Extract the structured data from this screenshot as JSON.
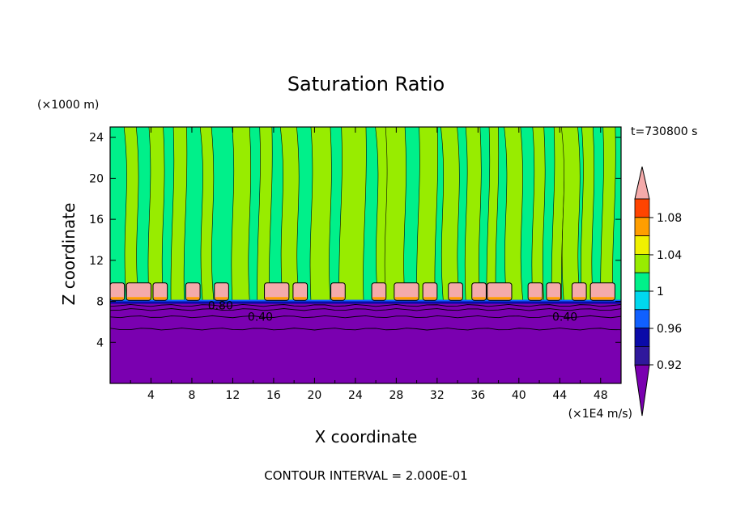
{
  "chart_data": {
    "type": "heatmap",
    "title": "Saturation Ratio",
    "xlabel": "X coordinate",
    "ylabel": "Z coordinate",
    "x_unit": "(×1E4 m/s)",
    "y_unit": "(×1000 m)",
    "time_label": "t=730800 s",
    "footer": "CONTOUR INTERVAL = 2.000E-01",
    "xlim": [
      0,
      50
    ],
    "ylim": [
      0,
      25
    ],
    "x_ticks": [
      4,
      8,
      12,
      16,
      20,
      24,
      28,
      32,
      36,
      40,
      44,
      48
    ],
    "y_ticks": [
      4,
      8,
      12,
      16,
      20,
      24
    ],
    "contour_labels": [
      {
        "text": "0.80",
        "x": 10.8,
        "z": 7.6
      },
      {
        "text": "0.40",
        "x": 14.7,
        "z": 6.5
      },
      {
        "text": "0.40",
        "x": 44.5,
        "z": 6.5
      }
    ],
    "colorbar": {
      "labels": [
        "1.08",
        "1.04",
        "1",
        "0.96",
        "0.92"
      ],
      "levels": [
        {
          "range": "< 0.90",
          "color": "#7a00b0"
        },
        {
          "range": "0.90-0.92",
          "color": "#2f189c"
        },
        {
          "range": "0.92-0.94",
          "color": "#0a0aa8"
        },
        {
          "range": "0.94-0.96",
          "color": "#1060ff"
        },
        {
          "range": "0.96-0.98",
          "color": "#00d8ee"
        },
        {
          "range": "0.98-1.00",
          "color": "#00f08a"
        },
        {
          "range": "1.00-1.02",
          "color": "#98ec00"
        },
        {
          "range": "1.02-1.04",
          "color": "#f0f000"
        },
        {
          "range": "1.04-1.06",
          "color": "#ff9e00"
        },
        {
          "range": "1.06-1.08",
          "color": "#ff4400"
        },
        {
          "range": "> 1.08",
          "color": "#f4aaaa"
        }
      ]
    },
    "cloud_layer_top_z": 8.0,
    "cloud_cells_x": [
      0.7,
      2.8,
      4.9,
      8.1,
      10.9,
      16.3,
      18.6,
      22.3,
      26.3,
      29.0,
      31.3,
      33.8,
      36.1,
      38.1,
      41.6,
      43.4,
      45.9,
      48.2
    ]
  }
}
